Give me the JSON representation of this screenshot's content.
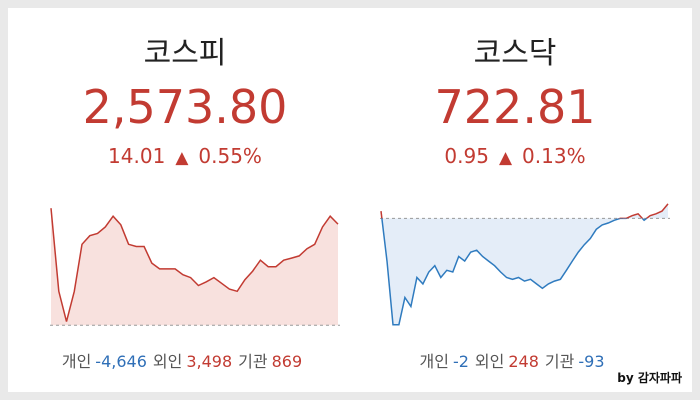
{
  "panels": [
    {
      "name": "코스피",
      "value": "2,573.80",
      "change": "14.01",
      "change_pct": "0.55%",
      "investors": [
        {
          "label": "개인",
          "value": "-4,646",
          "color": "#2f6fb7"
        },
        {
          "label": "외인",
          "value": "3,498",
          "color": "#c23b32"
        },
        {
          "label": "기관",
          "value": "869",
          "color": "#c23b32"
        }
      ],
      "sparkline": {
        "line_color": "#c23b32",
        "fill_color": "#f6d9d6",
        "baseline": 2559.79,
        "ylim": [
          2559,
          2577
        ],
        "values": [
          2576.0,
          2564.5,
          2560.3,
          2564.5,
          2571.0,
          2572.2,
          2572.5,
          2573.4,
          2574.9,
          2573.7,
          2571.0,
          2570.7,
          2570.7,
          2568.4,
          2567.6,
          2567.6,
          2567.6,
          2566.8,
          2566.4,
          2565.3,
          2565.8,
          2566.4,
          2565.6,
          2564.8,
          2564.5,
          2566.1,
          2567.3,
          2568.8,
          2567.9,
          2567.9,
          2568.8,
          2569.1,
          2569.4,
          2570.4,
          2571.0,
          2573.4,
          2574.9,
          2573.8
        ]
      }
    },
    {
      "name": "코스닥",
      "value": "722.81",
      "change": "0.95",
      "change_pct": "0.13%",
      "investors": [
        {
          "label": "개인",
          "value": "-2",
          "color": "#2f6fb7"
        },
        {
          "label": "외인",
          "value": "248",
          "color": "#c23b32"
        },
        {
          "label": "기관",
          "value": "-93",
          "color": "#2f6fb7"
        }
      ],
      "sparkline": {
        "line_color": "#2f7bbf",
        "up_color": "#c23b32",
        "fill_color": "#dde9f6",
        "baseline": 721.86,
        "ylim": [
          714.5,
          723.0
        ],
        "values": [
          722.34,
          719.07,
          714.91,
          714.91,
          716.69,
          716.1,
          718.0,
          717.58,
          718.36,
          718.77,
          718.0,
          718.47,
          718.36,
          719.37,
          719.07,
          719.66,
          719.78,
          719.37,
          719.07,
          718.77,
          718.36,
          718.0,
          717.88,
          718.0,
          717.76,
          717.88,
          717.58,
          717.29,
          717.58,
          717.76,
          717.88,
          718.47,
          719.07,
          719.66,
          720.14,
          720.55,
          721.15,
          721.44,
          721.56,
          721.74,
          721.86,
          721.86,
          722.04,
          722.16,
          721.74,
          722.04,
          722.16,
          722.34,
          722.81
        ]
      }
    }
  ],
  "watermark": "by 감자파파"
}
